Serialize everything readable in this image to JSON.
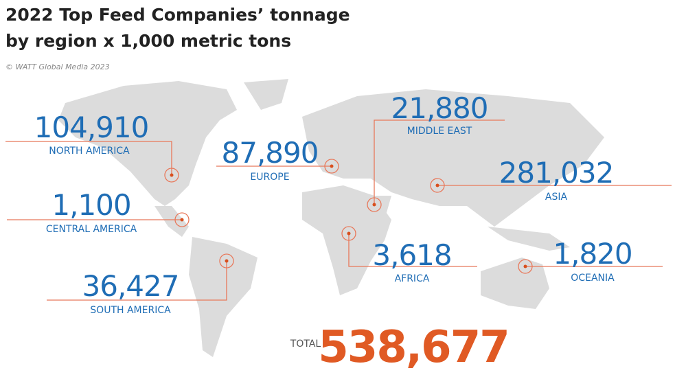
{
  "header": {
    "title_line1": "2022 Top Feed Companies’ tonnage",
    "title_line2": "by region x 1,000 metric tons",
    "credit": "© WATT Global Media 2023"
  },
  "regions": [
    {
      "name": "NORTH AMERICA",
      "value": "104,910"
    },
    {
      "name": "EUROPE",
      "value": "87,890"
    },
    {
      "name": "MIDDLE EAST",
      "value": "21,880"
    },
    {
      "name": "ASIA",
      "value": "281,032"
    },
    {
      "name": "CENTRAL AMERICA",
      "value": "1,100"
    },
    {
      "name": "SOUTH AMERICA",
      "value": "36,427"
    },
    {
      "name": "AFRICA",
      "value": "3,618"
    },
    {
      "name": "OCEANIA",
      "value": "1,820"
    }
  ],
  "total": {
    "label": "TOTAL",
    "value": "538,677"
  }
}
